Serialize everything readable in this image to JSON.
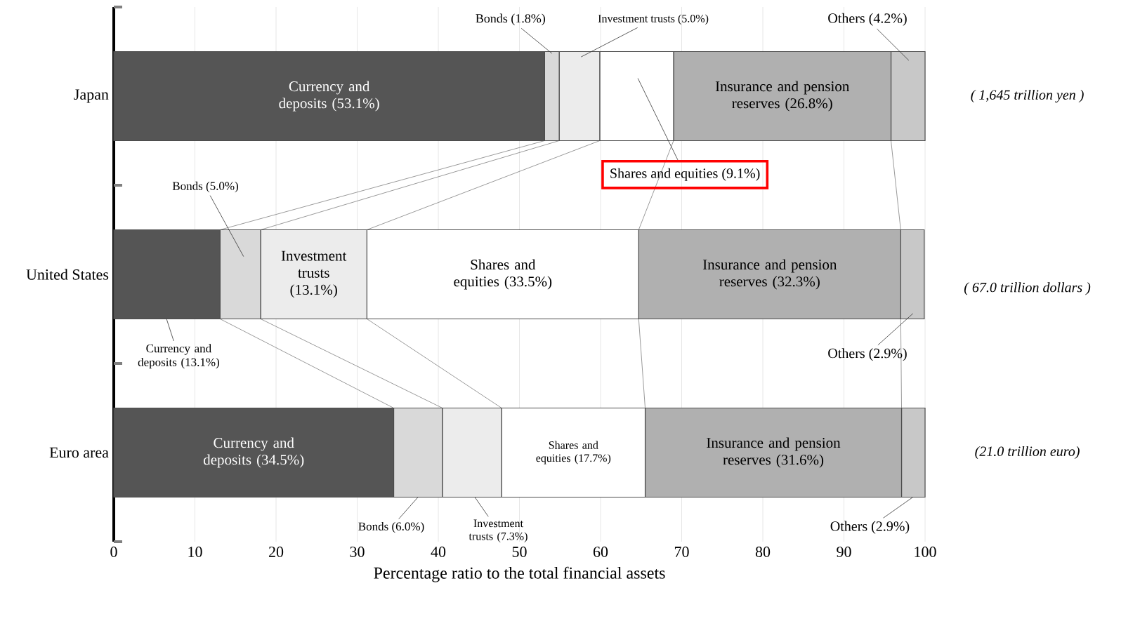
{
  "chart_data": {
    "type": "bar",
    "orientation": "horizontal",
    "stacked": true,
    "categories": [
      "Japan",
      "United States",
      "Euro area"
    ],
    "series": [
      {
        "color": "#555555",
        "values": [
          53.1,
          13.1,
          34.5
        ],
        "value_labels": [
          "Currency and deposits (53.1%)",
          "Currency and deposits (13.1%)",
          "Currency and deposits (34.5%)"
        ]
      },
      {
        "color": "#d9d9d9",
        "values": [
          1.8,
          5.0,
          6.0
        ],
        "value_labels": [
          "Bonds (1.8%)",
          "Bonds (5.0%)",
          "Bonds (6.0%)"
        ]
      },
      {
        "color": "#ececec",
        "values": [
          5.0,
          13.1,
          7.3
        ],
        "value_labels": [
          "Investment trusts (5.0%)",
          "Investment trusts (13.1%)",
          "Investment trusts (7.3%)"
        ]
      },
      {
        "color": "#ffffff",
        "values": [
          9.1,
          33.5,
          17.7
        ],
        "value_labels": [
          "Shares and equities (9.1%)",
          "Shares and equities (33.5%)",
          "Shares and equities (17.7%)"
        ]
      },
      {
        "color": "#b0b0b0",
        "values": [
          26.8,
          32.3,
          31.6
        ],
        "value_labels": [
          "Insurance and pension reserves (26.8%)",
          "Insurance and pension reserves (32.3%)",
          "Insurance and pension reserves (31.6%)"
        ]
      },
      {
        "color": "#c8c8c8",
        "values": [
          4.2,
          2.9,
          2.9
        ],
        "value_labels": [
          "Others (4.2%)",
          "Others (2.9%)",
          "Others (2.9%)"
        ]
      }
    ],
    "xlim": [
      0,
      100
    ],
    "xticks": [
      0,
      10,
      20,
      30,
      40,
      50,
      60,
      70,
      80,
      90,
      100
    ],
    "xlabel": "Percentage ratio to the total financial assets",
    "grid": "x",
    "annotations": [
      "( 1,645 trillion yen )",
      "( 67.0 trillion dollars )",
      "(21.0 trillion euro)"
    ]
  }
}
